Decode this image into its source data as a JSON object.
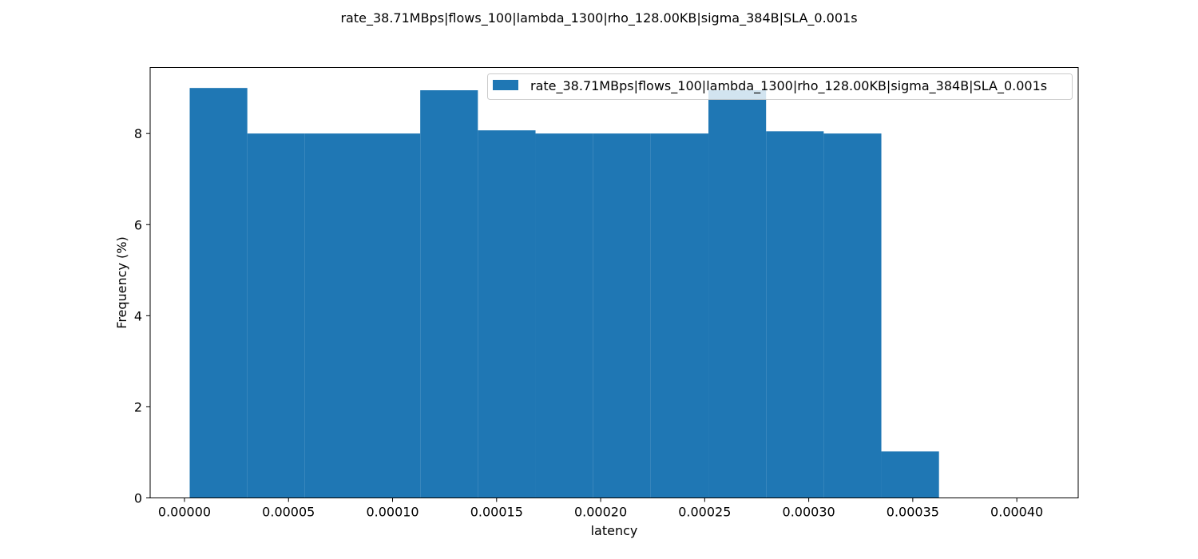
{
  "chart_data": {
    "type": "bar",
    "title": "rate_38.71MBps|flows_100|lambda_1300|rho_128.00KB|sigma_384B|SLA_0.001s",
    "xlabel": "latency",
    "ylabel": "Frequency (%)",
    "xlim": [
      -1.65e-05,
      0.0004295
    ],
    "ylim": [
      0,
      9.45
    ],
    "xticks": [
      0.0,
      5e-05,
      0.0001,
      0.00015,
      0.0002,
      0.00025,
      0.0003,
      0.00035,
      0.0004
    ],
    "xtick_labels": [
      "0.00000",
      "0.00005",
      "0.00010",
      "0.00015",
      "0.00020",
      "0.00025",
      "0.00030",
      "0.00035",
      "0.00040"
    ],
    "yticks": [
      0,
      2,
      4,
      6,
      8
    ],
    "ytick_labels": [
      "0",
      "2",
      "4",
      "6",
      "8"
    ],
    "color": "#1f77b4",
    "legend_position": "top-right",
    "series": [
      {
        "name": "rate_38.71MBps|flows_100|lambda_1300|rho_128.00KB|sigma_384B|SLA_0.001s",
        "bins": [
          {
            "start": 2.5e-06,
            "end": 3.02e-05,
            "value": 9.0
          },
          {
            "start": 3.02e-05,
            "end": 5.79e-05,
            "value": 8.0
          },
          {
            "start": 5.79e-05,
            "end": 8.56e-05,
            "value": 8.0
          },
          {
            "start": 8.56e-05,
            "end": 0.0001133,
            "value": 8.0
          },
          {
            "start": 0.0001133,
            "end": 0.000141,
            "value": 8.95
          },
          {
            "start": 0.000141,
            "end": 0.0001687,
            "value": 8.07
          },
          {
            "start": 0.0001687,
            "end": 0.0001964,
            "value": 8.0
          },
          {
            "start": 0.0001964,
            "end": 0.0002241,
            "value": 8.0
          },
          {
            "start": 0.0002241,
            "end": 0.0002518,
            "value": 8.0
          },
          {
            "start": 0.0002518,
            "end": 0.0002795,
            "value": 8.95
          },
          {
            "start": 0.0002795,
            "end": 0.0003072,
            "value": 8.05
          },
          {
            "start": 0.0003072,
            "end": 0.0003349,
            "value": 8.0
          },
          {
            "start": 0.0003349,
            "end": 0.0003626,
            "value": 1.02
          }
        ]
      }
    ]
  }
}
